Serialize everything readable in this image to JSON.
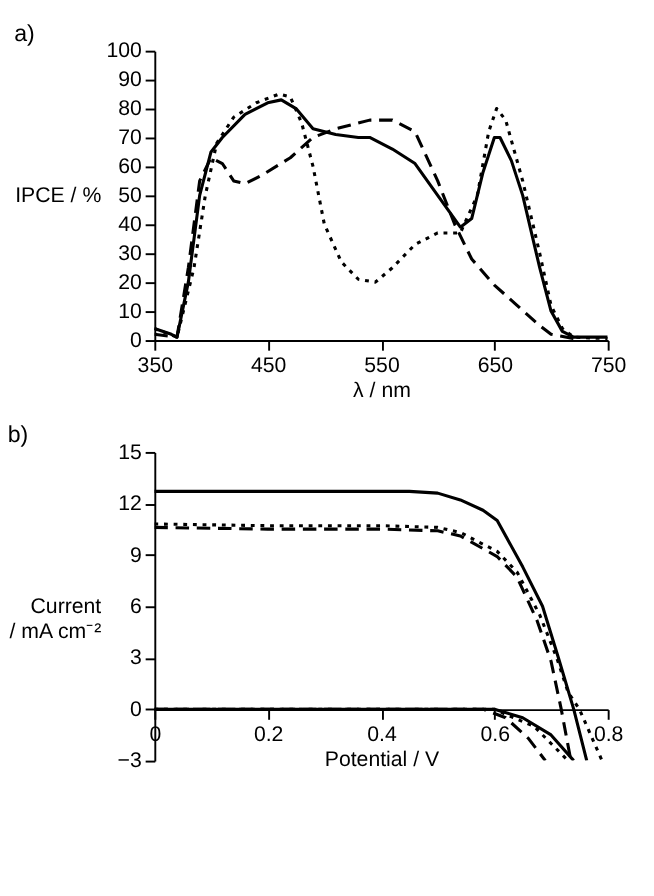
{
  "chart_data": [
    {
      "type": "line",
      "title": "a)",
      "xlabel": "λ / nm",
      "ylabel": "IPCE / %",
      "xlim": [
        350,
        750
      ],
      "xticks": [
        350,
        450,
        550,
        650,
        750
      ],
      "ylim": [
        0,
        100
      ],
      "yticks": [
        0,
        10,
        20,
        30,
        40,
        50,
        60,
        70,
        80,
        90,
        100
      ],
      "grid": false,
      "marker": "none",
      "series": [
        {
          "color": "#000000",
          "line_style": "solid",
          "x": [
            350,
            365,
            370,
            380,
            390,
            400,
            410,
            430,
            450,
            462,
            475,
            490,
            510,
            530,
            540,
            560,
            580,
            600,
            620,
            630,
            640,
            650,
            655,
            665,
            675,
            690,
            700,
            710,
            720,
            750
          ],
          "values": [
            4,
            2,
            1,
            20,
            50,
            65,
            70,
            78,
            82,
            83,
            80,
            73,
            71,
            70,
            70,
            66,
            61,
            50,
            39,
            42,
            58,
            70,
            70,
            62,
            50,
            25,
            10,
            3,
            1,
            1
          ]
        },
        {
          "color": "#000000",
          "line_style": "dashed",
          "x": [
            350,
            370,
            380,
            390,
            400,
            410,
            420,
            430,
            445,
            470,
            490,
            510,
            540,
            560,
            580,
            600,
            615,
            630,
            650,
            670,
            690,
            700,
            720
          ],
          "values": [
            2,
            1,
            25,
            55,
            63,
            61,
            55,
            54,
            57,
            63,
            70,
            73,
            76,
            76,
            72,
            55,
            40,
            28,
            19,
            12,
            5,
            2,
            0.5
          ]
        },
        {
          "color": "#000000",
          "line_style": "dotted",
          "x": [
            350,
            370,
            385,
            395,
            405,
            420,
            440,
            460,
            470,
            480,
            490,
            500,
            515,
            530,
            545,
            560,
            580,
            600,
            620,
            635,
            645,
            652,
            660,
            675,
            690,
            700,
            710,
            720,
            750
          ],
          "values": [
            4,
            1,
            25,
            50,
            68,
            77,
            82,
            85,
            84,
            75,
            60,
            40,
            27,
            21,
            20,
            25,
            33,
            37,
            37,
            50,
            72,
            80,
            76,
            55,
            30,
            12,
            4,
            1,
            0.5
          ]
        }
      ]
    },
    {
      "type": "line",
      "title": "b)",
      "xlabel": "Potential / V",
      "ylabel": "Current\n/ mA cm⁻²",
      "xlim": [
        0,
        0.8
      ],
      "xticks": [
        0,
        0.2,
        0.4,
        0.6,
        0.8
      ],
      "ylim": [
        -3,
        15
      ],
      "yticks": [
        -3,
        0,
        3,
        6,
        9,
        12,
        15
      ],
      "grid": false,
      "marker": "none",
      "series": [
        {
          "color": "#000000",
          "line_style": "solid",
          "x": [
            0,
            0.2,
            0.4,
            0.45,
            0.5,
            0.54,
            0.58,
            0.605,
            0.65,
            0.685,
            0.713,
            0.74,
            0.763
          ],
          "values": [
            12.7,
            12.7,
            12.7,
            12.7,
            12.6,
            12.2,
            11.6,
            11,
            8.3,
            6,
            3,
            0,
            -3
          ]
        },
        {
          "color": "#000000",
          "line_style": "dashed",
          "x": [
            0,
            0.2,
            0.4,
            0.5,
            0.54,
            0.605,
            0.64,
            0.675,
            0.7,
            0.718,
            0.735
          ],
          "values": [
            10.6,
            10.5,
            10.5,
            10.4,
            10.1,
            8.9,
            7.7,
            5.2,
            2.8,
            0,
            -3
          ]
        },
        {
          "color": "#000000",
          "line_style": "dotted",
          "x": [
            0,
            0.2,
            0.4,
            0.5,
            0.54,
            0.605,
            0.64,
            0.68,
            0.71,
            0.73,
            0.75,
            0.79
          ],
          "values": [
            10.8,
            10.7,
            10.7,
            10.6,
            10.3,
            9.2,
            8,
            5.5,
            3,
            1,
            0,
            -3
          ]
        },
        {
          "color": "#000000",
          "line_style": "solid",
          "x": [
            0,
            0.3,
            0.6,
            0.65,
            0.7,
            0.74
          ],
          "values": [
            0,
            0,
            0,
            -0.5,
            -1.5,
            -3
          ]
        },
        {
          "color": "#000000",
          "line_style": "dashed",
          "x": [
            0,
            0.3,
            0.58,
            0.62,
            0.66,
            0.69
          ],
          "values": [
            0,
            0,
            0,
            -0.5,
            -1.7,
            -3
          ]
        },
        {
          "color": "#000000",
          "line_style": "dotted",
          "x": [
            0,
            0.3,
            0.6,
            0.62,
            0.67,
            0.7,
            0.73
          ],
          "values": [
            0,
            0,
            0,
            -0.3,
            -1,
            -2,
            -3
          ]
        }
      ]
    }
  ]
}
